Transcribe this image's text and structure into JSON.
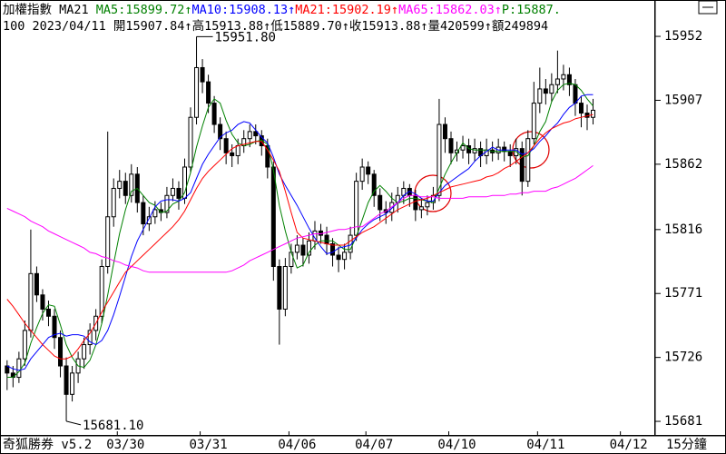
{
  "chart_data": {
    "type": "candlestick",
    "title": "加權指數",
    "indicator": "MA21",
    "price_reading": "P:15887.",
    "price_color": "#008000",
    "bar_info": "100 2023/04/11 開15907.84↑高15913.88↑低15889.70↑收15913.88↑量420599↑額249894",
    "software": "奇狐勝券 v5.2",
    "period": "15分鐘",
    "max_label": "15951.80",
    "min_label": "15681.10",
    "up_color": "#ffffff",
    "down_color": "#000000",
    "edge_color": "#000000",
    "grid": false,
    "ylim": [
      15670.8,
      15977.6
    ],
    "yticks": [
      15681,
      15726,
      15771,
      15816,
      15862,
      15907,
      15952
    ],
    "xlim": [
      -1.2,
      109.5
    ],
    "xticks": [
      {
        "value": 20,
        "label": "03/30"
      },
      {
        "value": 34,
        "label": "03/31"
      },
      {
        "value": 49,
        "label": "04/06"
      },
      {
        "value": 62,
        "label": "04/07"
      },
      {
        "value": 76,
        "label": "04/10"
      },
      {
        "value": 91,
        "label": "04/11"
      },
      {
        "value": 105,
        "label": "04/12"
      }
    ],
    "open": [
      15720,
      15715,
      15712,
      15725,
      15745,
      15785,
      15770,
      15760,
      15755,
      15740,
      15720,
      15700,
      15715,
      15725,
      15735,
      15745,
      15755,
      15790,
      15825,
      15845,
      15850,
      15840,
      15855,
      15835,
      15820,
      15825,
      15830,
      15828,
      15840,
      15845,
      15838,
      15860,
      15895,
      15930,
      15920,
      15905,
      15890,
      15880,
      15870,
      15868,
      15875,
      15880,
      15885,
      15882,
      15875,
      15860,
      15790,
      15760,
      15790,
      15800,
      15805,
      15798,
      15808,
      15815,
      15812,
      15806,
      15798,
      15795,
      15800,
      15812,
      15850,
      15860,
      15855,
      15840,
      15830,
      15828,
      15835,
      15840,
      15845,
      15840,
      15830,
      15832,
      15835,
      15840,
      15890,
      15880,
      15870,
      15872,
      15875,
      15870,
      15873,
      15868,
      15872,
      15870,
      15874,
      15871,
      15868,
      15873,
      15850,
      15880,
      15905,
      15915,
      15912,
      15918,
      15922,
      15925,
      15918,
      15905,
      15898,
      15895
    ],
    "high": [
      15724,
      15720,
      15730,
      15752,
      15816,
      15790,
      15774,
      15766,
      15760,
      15745,
      15726,
      15720,
      15730,
      15740,
      15750,
      15760,
      15795,
      15885,
      15852,
      15858,
      15856,
      15862,
      15860,
      15840,
      15832,
      15836,
      15835,
      15846,
      15852,
      15850,
      15866,
      15902,
      15951.8,
      15936,
      15925,
      15910,
      15895,
      15885,
      15876,
      15880,
      15886,
      15890,
      15890,
      15886,
      15880,
      15864,
      15795,
      15796,
      15806,
      15812,
      15810,
      15814,
      15822,
      15820,
      15818,
      15810,
      15804,
      15806,
      15818,
      15856,
      15866,
      15864,
      15858,
      15845,
      15836,
      15842,
      15846,
      15850,
      15848,
      15844,
      15838,
      15840,
      15846,
      15908,
      15895,
      15885,
      15878,
      15882,
      15880,
      15880,
      15878,
      15880,
      15878,
      15880,
      15878,
      15876,
      15880,
      15878,
      15886,
      15920,
      15930,
      15922,
      15926,
      15942,
      15932,
      15930,
      15922,
      15910,
      15904,
      15908
    ],
    "low": [
      15703,
      15705,
      15708,
      15720,
      15740,
      15765,
      15752,
      15748,
      15732,
      15712,
      15681.1,
      15695,
      15708,
      15718,
      15728,
      15738,
      15750,
      15785,
      15818,
      15838,
      15834,
      15835,
      15828,
      15812,
      15815,
      15820,
      15822,
      15824,
      15836,
      15830,
      15834,
      15856,
      15890,
      15912,
      15898,
      15884,
      15872,
      15862,
      15860,
      15862,
      15870,
      15874,
      15876,
      15868,
      15852,
      15780,
      15735,
      15755,
      15785,
      15795,
      15790,
      15792,
      15802,
      15806,
      15798,
      15790,
      15786,
      15788,
      15795,
      15808,
      15844,
      15848,
      15832,
      15822,
      15820,
      15822,
      15828,
      15834,
      15832,
      15822,
      15824,
      15826,
      15830,
      15836,
      15870,
      15862,
      15864,
      15866,
      15862,
      15864,
      15860,
      15862,
      15864,
      15865,
      15864,
      15860,
      15862,
      15840,
      15846,
      15876,
      15898,
      15904,
      15906,
      15912,
      15914,
      15910,
      15896,
      15888,
      15886,
      15890
    ],
    "close": [
      15715,
      15712,
      15725,
      15745,
      15785,
      15770,
      15760,
      15755,
      15740,
      15720,
      15700,
      15715,
      15725,
      15735,
      15745,
      15755,
      15790,
      15825,
      15845,
      15850,
      15840,
      15855,
      15835,
      15820,
      15825,
      15830,
      15828,
      15840,
      15845,
      15838,
      15860,
      15895,
      15930,
      15920,
      15905,
      15890,
      15880,
      15870,
      15868,
      15875,
      15880,
      15885,
      15882,
      15875,
      15860,
      15790,
      15760,
      15790,
      15800,
      15805,
      15798,
      15808,
      15815,
      15812,
      15806,
      15798,
      15795,
      15800,
      15812,
      15850,
      15860,
      15855,
      15840,
      15830,
      15828,
      15835,
      15840,
      15845,
      15840,
      15830,
      15832,
      15835,
      15840,
      15890,
      15880,
      15870,
      15872,
      15875,
      15870,
      15873,
      15868,
      15872,
      15870,
      15874,
      15871,
      15868,
      15873,
      15850,
      15880,
      15905,
      15915,
      15912,
      15918,
      15922,
      15925,
      15918,
      15905,
      15898,
      15895,
      15900
    ],
    "series": [
      {
        "name": "MA5",
        "reading": ":15899.72↑",
        "color": "#008000",
        "values": [
          15712,
          15712,
          15716,
          15722,
          15736,
          15747,
          15757,
          15763,
          15762,
          15749,
          15735,
          15726,
          15720,
          15719,
          15724,
          15735,
          15750,
          15770,
          15792,
          15813,
          15830,
          15843,
          15845,
          15840,
          15835,
          15833,
          15828,
          15829,
          15834,
          15836,
          15842,
          15856,
          15874,
          15889,
          15902,
          15908,
          15905,
          15893,
          15883,
          15877,
          15875,
          15876,
          15878,
          15879,
          15876,
          15858,
          15833,
          15815,
          15800,
          15789,
          15791,
          15800,
          15805,
          15808,
          15808,
          15808,
          15805,
          15802,
          15802,
          15811,
          15823,
          15835,
          15843,
          15847,
          15843,
          15838,
          15835,
          15836,
          15838,
          15838,
          15837,
          15836,
          15835,
          15845,
          15855,
          15863,
          15870,
          15877,
          15873,
          15872,
          15872,
          15872,
          15871,
          15871,
          15871,
          15871,
          15871,
          15867,
          15868,
          15875,
          15885,
          15892,
          15906,
          15914,
          15918,
          15919,
          15918,
          15914,
          15908,
          15903
        ]
      },
      {
        "name": "MA10",
        "reading": ":15908.13↑",
        "color": "#0000ff",
        "values": [
          15720,
          15718,
          15717,
          15718,
          15725,
          15730,
          15735,
          15740,
          15742,
          15743,
          15741,
          15742,
          15742,
          15741,
          15737,
          15735,
          15738,
          15745,
          15756,
          15769,
          15783,
          15797,
          15808,
          15816,
          15824,
          15832,
          15836,
          15837,
          15837,
          15836,
          15838,
          15842,
          15852,
          15862,
          15869,
          15875,
          15881,
          15884,
          15886,
          15890,
          15892,
          15891,
          15886,
          15881,
          15877,
          15867,
          15855,
          15847,
          15840,
          15833,
          15825,
          15817,
          15810,
          15804,
          15799,
          15800,
          15803,
          15804,
          15805,
          15810,
          15816,
          15820,
          15823,
          15825,
          15827,
          15831,
          15835,
          15840,
          15843,
          15841,
          15838,
          15836,
          15836,
          15842,
          15847,
          15850,
          15853,
          15856,
          15859,
          15864,
          15868,
          15871,
          15874,
          15872,
          15872,
          15872,
          15872,
          15869,
          15870,
          15873,
          15878,
          15882,
          15887,
          15891,
          15897,
          15902,
          15905,
          15910,
          15911,
          15911
        ]
      },
      {
        "name": "MA21",
        "reading": ":15902.19↑",
        "color": "#ff0000",
        "values": [
          15767,
          15762,
          15756,
          15750,
          15745,
          15740,
          15735,
          15731,
          15727,
          15725,
          15725,
          15727,
          15732,
          15738,
          15743,
          15750,
          15758,
          15765,
          15772,
          15779,
          15786,
          15790,
          15794,
          15798,
          15802,
          15806,
          15810,
          15814,
          15818,
          15823,
          15829,
          15837,
          15845,
          15852,
          15857,
          15861,
          15865,
          15869,
          15873,
          15875,
          15876,
          15877,
          15878,
          15878,
          15872,
          15865,
          15857,
          15843,
          15828,
          15814,
          15810,
          15809,
          15808,
          15807,
          15806,
          15805,
          15805,
          15805,
          15808,
          15811,
          15814,
          15816,
          15818,
          15821,
          15824,
          15827,
          15830,
          15832,
          15834,
          15836,
          15837,
          15838,
          15840,
          15842,
          15844,
          15846,
          15847,
          15848,
          15849,
          15850,
          15851,
          15853,
          15854,
          15856,
          15859,
          15861,
          15864,
          15867,
          15870,
          15875,
          15880,
          15884,
          15887,
          15889,
          15891,
          15892,
          15894,
          15895,
          15896,
          15897
        ]
      },
      {
        "name": "MA65",
        "reading": ":15862.03↑",
        "color": "#ff00ff",
        "values": [
          15831,
          15829,
          15827,
          15825,
          15822,
          15820,
          15818,
          15815,
          15813,
          15811,
          15809,
          15807,
          15805,
          15803,
          15800,
          15799,
          15797,
          15796,
          15794,
          15793,
          15791,
          15790,
          15789,
          15787,
          15786,
          15786,
          15786,
          15786,
          15786,
          15786,
          15786,
          15786,
          15786,
          15786,
          15786,
          15786,
          15786,
          15786,
          15787,
          15789,
          15791,
          15794,
          15796,
          15798,
          15800,
          15802,
          15804,
          15806,
          15808,
          15810,
          15811,
          15812,
          15813,
          15813,
          15814,
          15815,
          15816,
          15816,
          15817,
          15818,
          15818,
          15821,
          15824,
          15827,
          15829,
          15832,
          15835,
          15838,
          15840,
          15840,
          15839,
          15839,
          15839,
          15838,
          15838,
          15838,
          15838,
          15838,
          15839,
          15839,
          15839,
          15839,
          15840,
          15840,
          15840,
          15841,
          15841,
          15842,
          15842,
          15843,
          15843,
          15843,
          15845,
          15846,
          15848,
          15850,
          15852,
          15855,
          15858,
          15861
        ]
      }
    ]
  }
}
